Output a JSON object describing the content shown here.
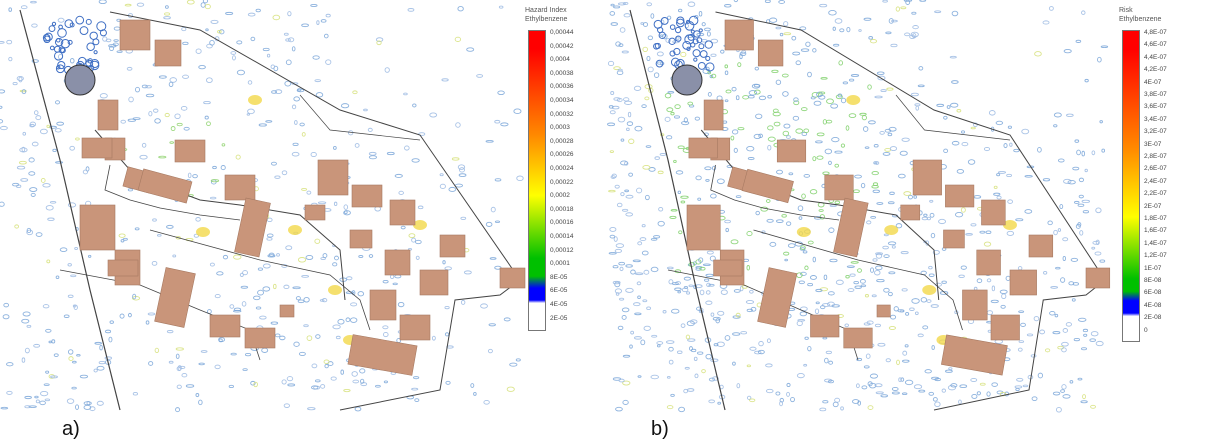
{
  "panels": [
    {
      "label": "a)",
      "legend": {
        "title": "Hazard Index",
        "subtitle": "Ethylbenzene",
        "ticks": [
          "0,00044",
          "0,00042",
          "0,0004",
          "0,00038",
          "0,00036",
          "0,00034",
          "0,00032",
          "0,0003",
          "0,00028",
          "0,00026",
          "0,00024",
          "0,00022",
          "0,0002",
          "0,00018",
          "0,00016",
          "0,00014",
          "0,00012",
          "0,0001",
          "8E-05",
          "6E-05",
          "4E-05",
          "2E-05"
        ]
      }
    },
    {
      "label": "b)",
      "legend": {
        "title": "Risk",
        "subtitle": "Ethylbenzene",
        "ticks": [
          "4,8E-07",
          "4,6E-07",
          "4,4E-07",
          "4,2E-07",
          "4E-07",
          "3,8E-07",
          "3,6E-07",
          "3,4E-07",
          "3,2E-07",
          "3E-07",
          "2,8E-07",
          "2,6E-07",
          "2,4E-07",
          "2,2E-07",
          "2E-07",
          "1,8E-07",
          "1,6E-07",
          "1,4E-07",
          "1,2E-07",
          "1E-07",
          "8E-08",
          "6E-08",
          "4E-08",
          "2E-08",
          "0"
        ]
      }
    }
  ],
  "colors": {
    "building": "#c9957a",
    "building_edge": "#a77a62",
    "road": "#444444",
    "ramp_top": "#ff0000",
    "ramp_orange": "#ff8a00",
    "ramp_yellow": "#ffff00",
    "ramp_green": "#00c000",
    "ramp_blue": "#0000ff",
    "ramp_low": "#ffffff"
  }
}
